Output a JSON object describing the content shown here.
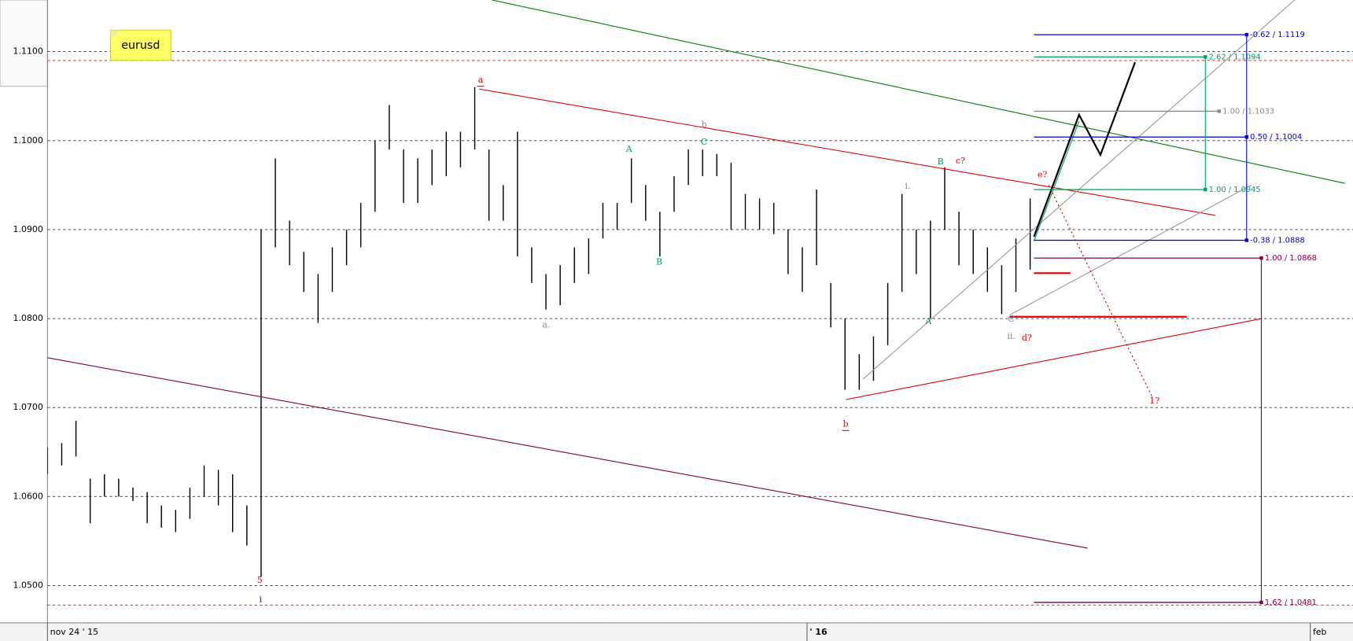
{
  "chart_data": {
    "type": "ohlc",
    "title": "eurusd",
    "x": [
      0,
      3,
      6,
      9,
      12,
      15,
      18,
      21,
      24,
      27,
      30,
      33,
      36,
      39,
      42,
      45,
      48,
      51,
      54,
      57,
      60,
      63,
      66,
      69,
      72,
      75,
      78,
      81,
      84,
      87,
      90,
      93,
      96,
      99,
      102,
      105,
      108,
      111,
      114,
      117,
      120,
      123,
      126,
      129,
      132,
      135,
      138,
      141,
      144,
      147,
      150,
      153,
      156,
      159,
      162,
      165,
      168,
      171,
      174,
      177,
      180,
      183,
      186,
      189,
      192,
      195,
      198,
      201,
      204,
      207
    ],
    "highs": [
      1.0655,
      1.066,
      1.0685,
      1.062,
      1.0625,
      1.062,
      1.061,
      1.0605,
      1.059,
      1.0585,
      1.061,
      1.0635,
      1.063,
      1.0625,
      1.059,
      1.09,
      1.098,
      1.091,
      1.0875,
      1.085,
      1.088,
      1.09,
      1.093,
      1.1,
      1.104,
      1.099,
      1.098,
      1.099,
      1.101,
      1.101,
      1.106,
      1.099,
      1.095,
      1.101,
      1.088,
      1.085,
      1.086,
      1.088,
      1.089,
      1.093,
      1.093,
      1.098,
      1.095,
      1.092,
      1.096,
      1.099,
      1.099,
      1.0985,
      1.0975,
      1.094,
      1.0935,
      1.093,
      1.09,
      1.088,
      1.0945,
      1.084,
      1.08,
      1.076,
      1.078,
      1.084,
      1.094,
      1.09,
      1.091,
      1.097,
      1.092,
      1.09,
      1.088,
      1.086,
      1.089,
      1.0935
    ],
    "lows": [
      1.0625,
      1.0635,
      1.0645,
      1.057,
      1.06,
      1.06,
      1.0595,
      1.057,
      1.0565,
      1.056,
      1.0575,
      1.06,
      1.059,
      1.056,
      1.0545,
      1.051,
      1.088,
      1.086,
      1.083,
      1.0795,
      1.083,
      1.086,
      1.088,
      1.092,
      1.099,
      1.093,
      1.093,
      1.095,
      1.096,
      1.097,
      1.099,
      1.091,
      1.091,
      1.087,
      1.084,
      1.081,
      1.0815,
      1.084,
      1.085,
      1.089,
      1.09,
      1.093,
      1.091,
      1.087,
      1.092,
      1.095,
      1.096,
      1.096,
      1.09,
      1.09,
      1.09,
      1.0895,
      1.085,
      1.083,
      1.086,
      1.079,
      1.072,
      1.072,
      1.073,
      1.077,
      1.083,
      1.085,
      1.08,
      1.09,
      1.086,
      1.085,
      1.083,
      1.0805,
      1.083,
      1.0855
    ],
    "bar_color": "#000000",
    "xlim": [
      0,
      275
    ],
    "xticks": [
      {
        "value": 0,
        "label": "nov 24 ' 15"
      },
      {
        "value": 160,
        "label": "' 16"
      },
      {
        "value": 266,
        "label": "feb"
      }
    ],
    "ylim": [
      1.0458,
      1.1158
    ],
    "yticks": [
      {
        "value": 1.05,
        "label": "1.0500"
      },
      {
        "value": 1.06,
        "label": "1.0600"
      },
      {
        "value": 1.07,
        "label": "1.0700"
      },
      {
        "value": 1.08,
        "label": "1.0800"
      },
      {
        "value": 1.09,
        "label": "1.0900"
      },
      {
        "value": 1.1,
        "label": "1.1000"
      },
      {
        "value": 1.11,
        "label": "1.1100"
      }
    ],
    "grid": true,
    "ref_lines": [
      {
        "value": 1.109,
        "color": "#e00000"
      },
      {
        "value": 1.0478,
        "color": "#e00000"
      }
    ],
    "trend_lines": [
      {
        "color": "#008000",
        "x": [
          93.6,
          273.3
        ],
        "y": [
          1.1158,
          1.0952
        ]
      },
      {
        "color": "#e00000",
        "x": [
          90.9,
          246
        ],
        "y": [
          1.1058,
          1.0916
        ]
      },
      {
        "color": "#e00000",
        "x": [
          168.2,
          255.8
        ],
        "y": [
          1.0709,
          1.08
        ]
      },
      {
        "color": "#800040",
        "x": [
          0,
          219.1
        ],
        "y": [
          1.0756,
          1.0542
        ]
      },
      {
        "color": "#999999",
        "x": [
          171.8,
          262.7
        ],
        "y": [
          1.0732,
          1.1158
        ]
      },
      {
        "color": "#999999",
        "x": [
          202.7,
          253.6
        ],
        "y": [
          1.0804,
          1.095
        ]
      },
      {
        "color": "#00a060",
        "x": [
          207.8,
          217.3
        ],
        "y": [
          1.0887,
          1.1022
        ]
      },
      {
        "color": "#cc0000",
        "style": "dotted",
        "x": [
          210.9,
          232.7
        ],
        "y": [
          1.095,
          1.0712
        ]
      },
      {
        "color": "#000000",
        "width": 2,
        "x": [
          207.8,
          217.3,
          221.8,
          229.1
        ],
        "y": [
          1.0892,
          1.1029,
          1.0984,
          1.1088
        ]
      }
    ],
    "segments": [
      {
        "color": "#e00000",
        "value": 1.0851,
        "x": [
          207.8,
          215.5
        ]
      },
      {
        "color": "#e00000",
        "value": 1.0802,
        "x": [
          202.7,
          240
        ]
      }
    ],
    "fib_levels": [
      {
        "label": "-0.62 / 1.1119",
        "value": 1.1119,
        "color": "#0000cc",
        "x": [
          207.8,
          252.6
        ]
      },
      {
        "label": "2.62 / 1.1094",
        "value": 1.1094,
        "color": "#00a060",
        "x": [
          207.8,
          243.9
        ]
      },
      {
        "label": "1.00 / 1.1033",
        "value": 1.1033,
        "color": "#888888",
        "x": [
          207.8,
          246.8
        ]
      },
      {
        "label": "0.50 / 1.1004",
        "value": 1.1004,
        "color": "#0000cc",
        "x": [
          207.8,
          252.6
        ]
      },
      {
        "label": "1.00 / 1.0945",
        "value": 1.0945,
        "color": "#00a060",
        "x": [
          207.8,
          243.9
        ]
      },
      {
        "label": "-0.38 / 1.0888",
        "value": 1.0888,
        "color": "#0000cc",
        "x": [
          207.8,
          252.6
        ]
      },
      {
        "label": "1.00 / 1.0868",
        "value": 1.0868,
        "color": "#800040",
        "x": [
          207.8,
          255.7
        ]
      },
      {
        "label": "1.62 / 1.0481",
        "value": 1.0481,
        "color": "#800040",
        "x": [
          207.8,
          255.7
        ]
      }
    ],
    "annotations": [
      {
        "text": "a",
        "color": "#e00000"
      },
      {
        "text": "b",
        "color": "#888888"
      },
      {
        "text": "c?",
        "color": "#e00000"
      },
      {
        "text": "b",
        "color": "#e00000"
      },
      {
        "text": "a.",
        "color": "#888888"
      },
      {
        "text": "A",
        "color": "#00a060"
      },
      {
        "text": "B",
        "color": "#00a060"
      },
      {
        "text": "C",
        "color": "#00a060"
      },
      {
        "text": "i.",
        "color": "#888888"
      },
      {
        "text": "B",
        "color": "#00a060"
      },
      {
        "text": "A",
        "color": "#00a060"
      },
      {
        "text": "ii.",
        "color": "#888888"
      },
      {
        "text": "d?",
        "color": "#e00000"
      },
      {
        "text": "e?",
        "color": "#e00000"
      },
      {
        "text": "C",
        "color": "#888888"
      },
      {
        "text": "1?",
        "color": "#e00000"
      },
      {
        "text": "5",
        "color": "#e00000"
      },
      {
        "text": "i",
        "color": "#0000cc"
      }
    ]
  }
}
